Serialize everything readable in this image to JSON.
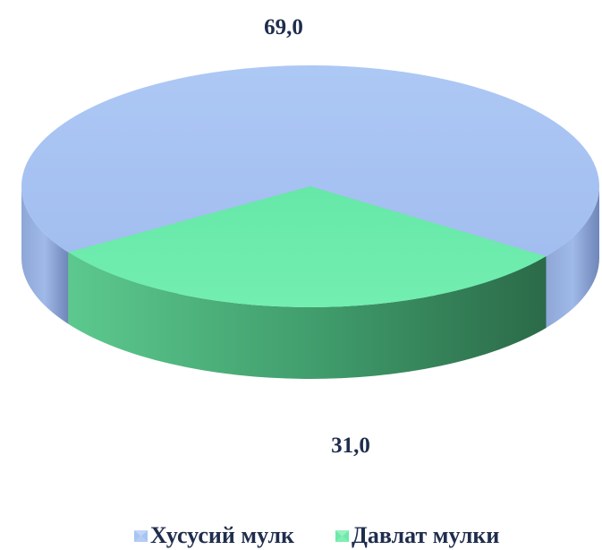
{
  "chart_data": {
    "type": "pie",
    "title": "",
    "categories": [
      "Хусусий мулк",
      "Давлат мулки"
    ],
    "values": [
      69.0,
      31.0
    ],
    "data_labels": [
      "69,0",
      "31,0"
    ],
    "colors": [
      "#a7c4f2",
      "#6ceaa9"
    ],
    "legend_position": "bottom",
    "three_d": true,
    "exploded_slice": "Давлат мулки"
  },
  "legend": {
    "items": [
      {
        "label": "Хусусий мулк",
        "color": "#a7c4f2"
      },
      {
        "label": "Давлат мулки",
        "color": "#6ceaa9"
      }
    ]
  }
}
